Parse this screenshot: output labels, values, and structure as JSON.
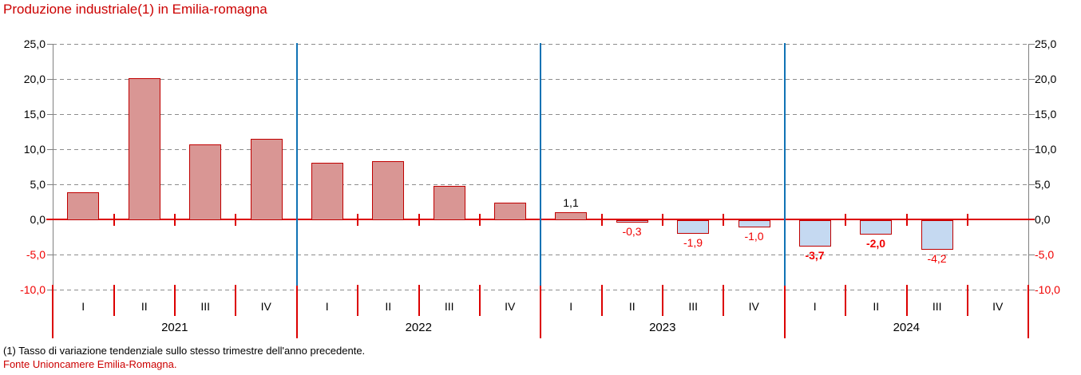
{
  "title": "Produzione industriale(1) in Emilia-romagna",
  "footnote": "(1) Tasso di variazione tendenziale sullo stesso trimestre dell'anno precedente.",
  "source": "Fonte Unioncamere Emilia-Romagna.",
  "chart_data": {
    "type": "bar",
    "title": "Produzione industriale(1) in Emilia-romagna",
    "xlabel": "",
    "ylabel": "",
    "ylim": [
      -10,
      25
    ],
    "ytick_step": 5,
    "grid": "horizontal-dashed",
    "legend": "none",
    "yticks": [
      {
        "value": 25,
        "label": "25,0"
      },
      {
        "value": 20,
        "label": "20,0"
      },
      {
        "value": 15,
        "label": "15,0"
      },
      {
        "value": 10,
        "label": "10,0"
      },
      {
        "value": 5,
        "label": "5,0"
      },
      {
        "value": 0,
        "label": "0,0"
      },
      {
        "value": -5,
        "label": "-5,0"
      },
      {
        "value": -10,
        "label": "-10,0"
      }
    ],
    "quarter_labels": [
      "I",
      "II",
      "III",
      "IV"
    ],
    "year_labels": [
      "2021",
      "2022",
      "2023",
      "2024"
    ],
    "points": [
      {
        "year": "2021",
        "quarter": "I",
        "value": 3.9,
        "label": null,
        "label_bold": false
      },
      {
        "year": "2021",
        "quarter": "II",
        "value": 20.1,
        "label": null,
        "label_bold": false
      },
      {
        "year": "2021",
        "quarter": "III",
        "value": 10.7,
        "label": null,
        "label_bold": false
      },
      {
        "year": "2021",
        "quarter": "IV",
        "value": 11.5,
        "label": null,
        "label_bold": false
      },
      {
        "year": "2022",
        "quarter": "I",
        "value": 8.1,
        "label": null,
        "label_bold": false
      },
      {
        "year": "2022",
        "quarter": "II",
        "value": 8.3,
        "label": null,
        "label_bold": false
      },
      {
        "year": "2022",
        "quarter": "III",
        "value": 4.8,
        "label": null,
        "label_bold": false
      },
      {
        "year": "2022",
        "quarter": "IV",
        "value": 2.4,
        "label": null,
        "label_bold": false
      },
      {
        "year": "2023",
        "quarter": "I",
        "value": 1.1,
        "label": "1,1",
        "label_bold": false
      },
      {
        "year": "2023",
        "quarter": "II",
        "value": -0.3,
        "label": "-0,3",
        "label_bold": false
      },
      {
        "year": "2023",
        "quarter": "III",
        "value": -1.9,
        "label": "-1,9",
        "label_bold": false
      },
      {
        "year": "2023",
        "quarter": "IV",
        "value": -1.0,
        "label": "-1,0",
        "label_bold": false
      },
      {
        "year": "2024",
        "quarter": "I",
        "value": -3.7,
        "label": "-3,7",
        "label_bold": true
      },
      {
        "year": "2024",
        "quarter": "II",
        "value": -2.0,
        "label": "-2,0",
        "label_bold": true
      },
      {
        "year": "2024",
        "quarter": "III",
        "value": -4.2,
        "label": "-4,2",
        "label_bold": false
      },
      {
        "year": "2024",
        "quarter": "IV",
        "value": null,
        "label": null,
        "label_bold": false
      }
    ],
    "colors": {
      "positive_fill": "#D99694",
      "negative_fill": "#C5D9F1",
      "bar_border": "#C00000",
      "axis_line_red": "#DC0000",
      "negative_text": "#F00000",
      "title_red": "#CC0000",
      "year_separator_blue": "#1072B4",
      "gridline_gray": "#8C8C8C",
      "axis_border_gray": "#808080",
      "label_black": "#000000"
    }
  }
}
